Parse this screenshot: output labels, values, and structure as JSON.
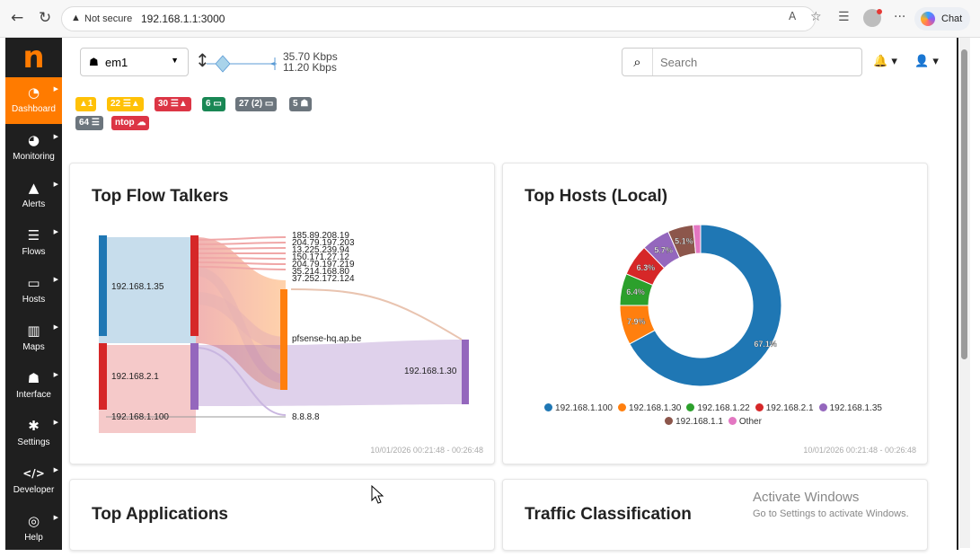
{
  "browser": {
    "security_label": "Not secure",
    "url": "192.168.1.1:3000",
    "chat_label": "Chat"
  },
  "sidebar": {
    "items": [
      {
        "label": "Dashboard",
        "icon": "gauge-icon"
      },
      {
        "label": "Monitoring",
        "icon": "monitoring-icon"
      },
      {
        "label": "Alerts",
        "icon": "warning-icon"
      },
      {
        "label": "Flows",
        "icon": "flows-icon"
      },
      {
        "label": "Hosts",
        "icon": "laptop-icon"
      },
      {
        "label": "Maps",
        "icon": "map-icon"
      },
      {
        "label": "Interface",
        "icon": "ethernet-icon"
      },
      {
        "label": "Settings",
        "icon": "gear-icon"
      },
      {
        "label": "Developer",
        "icon": "code-icon"
      },
      {
        "label": "Help",
        "icon": "lifebuoy-icon"
      }
    ],
    "active": "Dashboard",
    "accent": "#ff7b00"
  },
  "toolbar": {
    "interface": "em1",
    "rate_up": "35.70 Kbps",
    "rate_down": "11.20 Kbps",
    "search_placeholder": "Search"
  },
  "badges": [
    {
      "text": "1",
      "icon": "warning-icon",
      "color": "#ffc107"
    },
    {
      "text": "22",
      "icon": "flows-warning-icon",
      "color": "#ffc107"
    },
    {
      "text": "30",
      "icon": "flows-warning-icon",
      "color": "#dc3545"
    },
    {
      "text": "6",
      "icon": "laptop-icon",
      "color": "#198754"
    },
    {
      "text": "27 (2)",
      "icon": "laptop-icon",
      "color": "#6c757d"
    },
    {
      "text": "5",
      "icon": "ethernet-icon",
      "color": "#6c757d"
    },
    {
      "text": "64",
      "icon": "flows-icon",
      "color": "#6c757d"
    },
    {
      "text": "ntop",
      "icon": "cloud-icon",
      "color": "#dc3545"
    }
  ],
  "cards": {
    "flow_talkers": {
      "title": "Top Flow Talkers",
      "timestamp": "10/01/2026 00:21:48 - 00:26:48",
      "sources": [
        "192.168.1.35",
        "192.168.2.1",
        "192.168.1.100"
      ],
      "destinations": [
        "185.89.208.19",
        "204.79.197.203",
        "13.225.239.94",
        "150.171.27.12",
        "204.79.197.219",
        "35.214.168.80",
        "37.252.172.124",
        "pfsense-hq.ap.be",
        "192.168.1.30",
        "8.8.8.8"
      ]
    },
    "top_hosts": {
      "title": "Top Hosts (Local)",
      "timestamp": "10/01/2026 00:21:48 - 00:26:48"
    },
    "top_applications": {
      "title": "Top Applications"
    },
    "traffic_classification": {
      "title": "Traffic Classification"
    }
  },
  "chart_data": {
    "type": "pie",
    "title": "Top Hosts (Local)",
    "donut": true,
    "categories": [
      "192.168.1.100",
      "192.168.1.30",
      "192.168.1.22",
      "192.168.2.1",
      "192.168.1.35",
      "192.168.1.1",
      "Other"
    ],
    "values": [
      67.1,
      7.9,
      6.4,
      6.3,
      5.7,
      5.1,
      1.5
    ],
    "labels": [
      "67.1%",
      "7.9%",
      "6.4%",
      "6.3%",
      "5.7%",
      "5.1%",
      ""
    ],
    "colors": [
      "#1f77b4",
      "#ff7f0e",
      "#2ca02c",
      "#d62728",
      "#9467bd",
      "#8c564b",
      "#e377c2"
    ],
    "legend": "bottom"
  },
  "watermark": {
    "line1": "Activate Windows",
    "line2": "Go to Settings to activate Windows."
  }
}
